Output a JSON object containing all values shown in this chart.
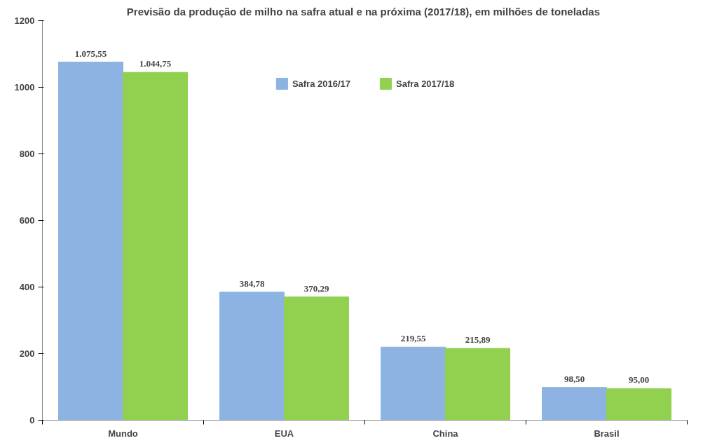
{
  "chart_data": {
    "type": "bar",
    "title": "Previsão da produção de milho  na safra atual e na próxima (2017/18), em milhões de toneladas",
    "categories": [
      "Mundo",
      "EUA",
      "China",
      "Brasil"
    ],
    "series": [
      {
        "name": "Safra 2016/17",
        "color": "#8db3e2",
        "values": [
          1075.55,
          384.78,
          219.55,
          98.5
        ],
        "value_labels": [
          "1.075,55",
          "384,78",
          "219,55",
          "98,50"
        ]
      },
      {
        "name": "Safra 2017/18",
        "color": "#92d050",
        "values": [
          1044.75,
          370.29,
          215.89,
          95.0
        ],
        "value_labels": [
          "1.044,75",
          "370,29",
          "215,89",
          "95,00"
        ]
      }
    ],
    "ylim": [
      0,
      1200
    ],
    "yticks": [
      0,
      200,
      400,
      600,
      800,
      1000,
      1200
    ],
    "grid": false,
    "legend": "top"
  }
}
